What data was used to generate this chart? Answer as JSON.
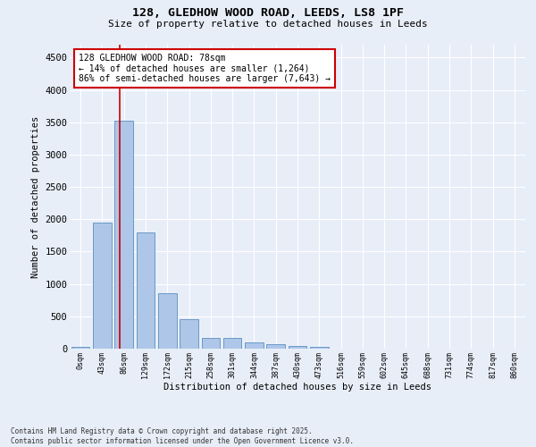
{
  "title_line1": "128, GLEDHOW WOOD ROAD, LEEDS, LS8 1PF",
  "title_line2": "Size of property relative to detached houses in Leeds",
  "xlabel": "Distribution of detached houses by size in Leeds",
  "ylabel": "Number of detached properties",
  "categories": [
    "0sqm",
    "43sqm",
    "86sqm",
    "129sqm",
    "172sqm",
    "215sqm",
    "258sqm",
    "301sqm",
    "344sqm",
    "387sqm",
    "430sqm",
    "473sqm",
    "516sqm",
    "559sqm",
    "602sqm",
    "645sqm",
    "688sqm",
    "731sqm",
    "774sqm",
    "817sqm",
    "860sqm"
  ],
  "values": [
    30,
    1950,
    3520,
    1800,
    860,
    450,
    170,
    170,
    90,
    65,
    35,
    25,
    5,
    5,
    5,
    3,
    2,
    2,
    1,
    1,
    1
  ],
  "bar_color": "#aec6e8",
  "bar_edge_color": "#5a8fc2",
  "vline_color": "#cc0000",
  "annotation_text": "128 GLEDHOW WOOD ROAD: 78sqm\n← 14% of detached houses are smaller (1,264)\n86% of semi-detached houses are larger (7,643) →",
  "annotation_box_color": "#ffffff",
  "annotation_box_edge": "#cc0000",
  "ylim": [
    0,
    4700
  ],
  "yticks": [
    0,
    500,
    1000,
    1500,
    2000,
    2500,
    3000,
    3500,
    4000,
    4500
  ],
  "background_color": "#e8eef8",
  "grid_color": "#ffffff",
  "footer_line1": "Contains HM Land Registry data © Crown copyright and database right 2025.",
  "footer_line2": "Contains public sector information licensed under the Open Government Licence v3.0."
}
